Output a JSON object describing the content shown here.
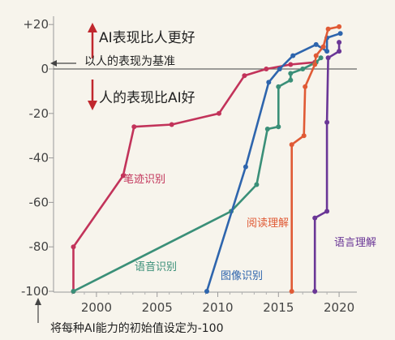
{
  "chart_data": {
    "type": "line",
    "xlim": [
      1996,
      2021
    ],
    "ylim": [
      -100,
      20
    ],
    "xticks": [
      "2000",
      "2005",
      "2010",
      "2015",
      "2020"
    ],
    "yticks": [
      "+20",
      "0",
      "-20",
      "-40",
      "-60",
      "-80",
      "-100"
    ],
    "grid": false,
    "baseline": 0,
    "annotations": {
      "above": "AI表现比人更好",
      "baseline": "以人的表现为基准",
      "below": "人的表现比AI好",
      "start": "将每种AI能力的初始值设定为-100"
    },
    "series": [
      {
        "name": "笔迹识别",
        "color": "#c2335a",
        "points": [
          [
            1998.1,
            -100
          ],
          [
            1998.1,
            -80
          ],
          [
            2002.2,
            -48
          ],
          [
            2003.1,
            -26
          ],
          [
            2006.2,
            -25
          ],
          [
            2010.1,
            -20
          ],
          [
            2012.2,
            -3
          ],
          [
            2014.0,
            0
          ],
          [
            2016.0,
            2
          ],
          [
            2018.0,
            3
          ]
        ]
      },
      {
        "name": "语音识别",
        "color": "#3a8f78",
        "points": [
          [
            1998.1,
            -100
          ],
          [
            2011.1,
            -64
          ],
          [
            2013.2,
            -52
          ],
          [
            2014.1,
            -27
          ],
          [
            2015.0,
            -26
          ],
          [
            2015.0,
            -8
          ],
          [
            2016.0,
            -5
          ],
          [
            2016.0,
            -2
          ],
          [
            2017.0,
            0
          ],
          [
            2018.1,
            3
          ],
          [
            2018.5,
            5
          ]
        ]
      },
      {
        "name": "图像识别",
        "color": "#2e65ad",
        "points": [
          [
            2009.1,
            -100
          ],
          [
            2012.3,
            -44
          ],
          [
            2014.2,
            -6
          ],
          [
            2015.1,
            0
          ],
          [
            2016.2,
            6
          ],
          [
            2018.1,
            11
          ],
          [
            2019.0,
            8
          ],
          [
            2019.0,
            14
          ],
          [
            2020.1,
            16
          ]
        ]
      },
      {
        "name": "阅读理解",
        "color": "#e05a35",
        "points": [
          [
            2016.1,
            -100
          ],
          [
            2016.1,
            -34
          ],
          [
            2017.1,
            -30
          ],
          [
            2017.2,
            -8
          ],
          [
            2018.0,
            2
          ],
          [
            2018.1,
            6
          ],
          [
            2018.7,
            10
          ],
          [
            2019.1,
            18
          ],
          [
            2020.0,
            19
          ]
        ]
      },
      {
        "name": "语言理解",
        "color": "#6a3696",
        "points": [
          [
            2018.0,
            -100
          ],
          [
            2018.0,
            -67
          ],
          [
            2019.0,
            -64
          ],
          [
            2019.0,
            -24
          ],
          [
            2019.1,
            5
          ],
          [
            2020.0,
            8
          ],
          [
            2020.0,
            12
          ]
        ]
      }
    ]
  }
}
